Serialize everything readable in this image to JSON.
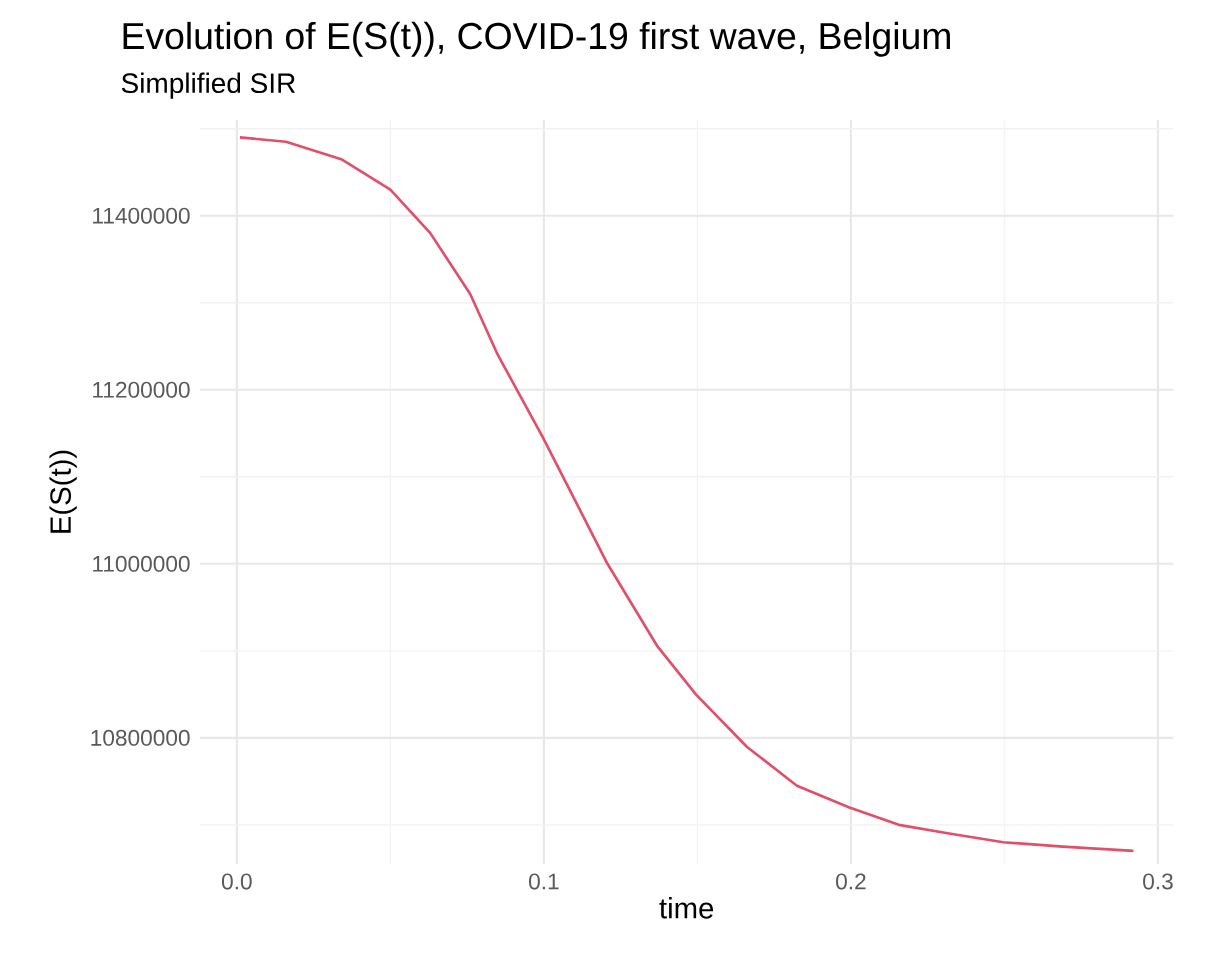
{
  "chart_data": {
    "type": "line",
    "title": "Evolution of E(S(t)), COVID-19 first wave, Belgium",
    "subtitle": "Simplified SIR",
    "xlabel": "time",
    "ylabel": "E(S(t))",
    "x": [
      0.001,
      0.016,
      0.034,
      0.05,
      0.063,
      0.076,
      0.085,
      0.0997,
      0.1207,
      0.137,
      0.1495,
      0.166,
      0.1824,
      0.1995,
      0.2156,
      0.232,
      0.2496,
      0.269,
      0.292
    ],
    "series": [
      {
        "color": "#e0506a",
        "values": [
          11490000,
          11485000,
          11465000,
          11430000,
          11380000,
          11310000,
          11240000,
          11145000,
          11000000,
          10905000,
          10850000,
          10790000,
          10745000,
          10720000,
          10700000,
          10690000,
          10680000,
          10675000,
          10670000
        ]
      }
    ],
    "xlim": [
      -0.012,
      0.305
    ],
    "ylim": [
      10655000,
      11510000
    ],
    "xticks": [
      {
        "value": 0,
        "label": "0.0"
      },
      0.1,
      0.2,
      0.3
    ],
    "yticks": [
      10800000,
      11000000,
      11200000,
      11400000
    ],
    "grid": true,
    "marker": "none",
    "line_style": "solid"
  }
}
